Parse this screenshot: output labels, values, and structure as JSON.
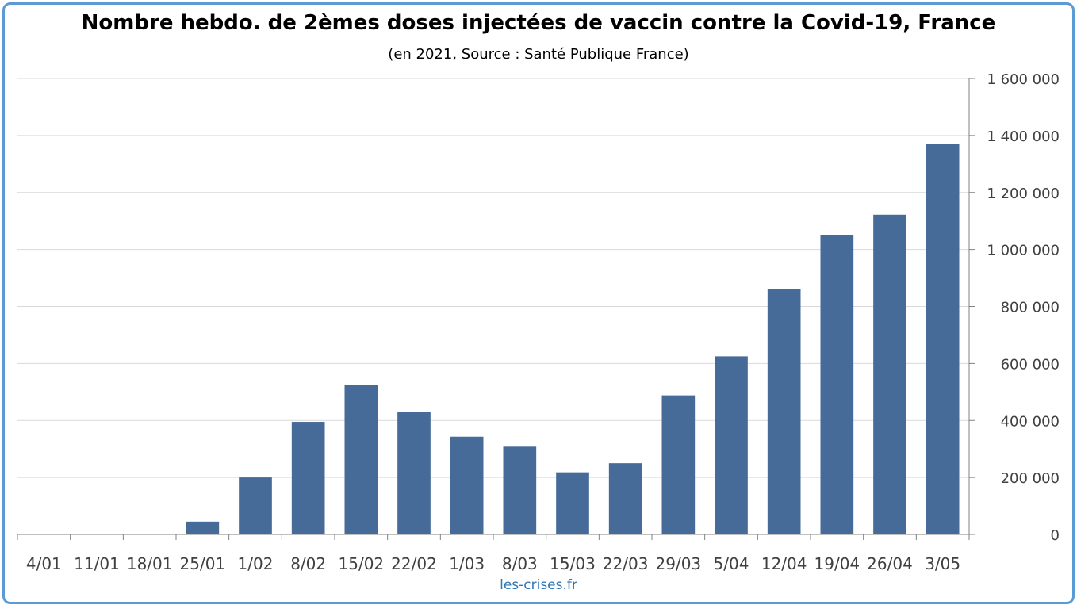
{
  "chart_data": {
    "type": "bar",
    "title": "Nombre hebdo. de 2èmes doses injectées de vaccin contre la Covid-19, France",
    "subtitle": "(en 2021, Source : Santé Publique France)",
    "source_note": "les-crises.fr",
    "xlabel": "",
    "ylabel": "",
    "categories": [
      "4/01",
      "11/01",
      "18/01",
      "25/01",
      "1/02",
      "8/02",
      "15/02",
      "22/02",
      "1/03",
      "8/03",
      "15/03",
      "22/03",
      "29/03",
      "5/04",
      "12/04",
      "19/04",
      "26/04",
      "3/05"
    ],
    "values": [
      0,
      0,
      0,
      45000,
      200000,
      395000,
      525000,
      430000,
      343000,
      308000,
      218000,
      250000,
      488000,
      625000,
      862000,
      1050000,
      1122000,
      1370000
    ],
    "ylim": [
      0,
      1600000
    ],
    "yticks": [
      0,
      200000,
      400000,
      600000,
      800000,
      1000000,
      1200000,
      1400000,
      1600000
    ],
    "ytick_labels": [
      "0",
      "200 000",
      "400 000",
      "600 000",
      "800 000",
      "1 000 000",
      "1 200 000",
      "1 400 000",
      "1 600 000"
    ],
    "y_axis_side": "right",
    "grid": true,
    "legend": "none",
    "bar_color": "#466b98"
  }
}
